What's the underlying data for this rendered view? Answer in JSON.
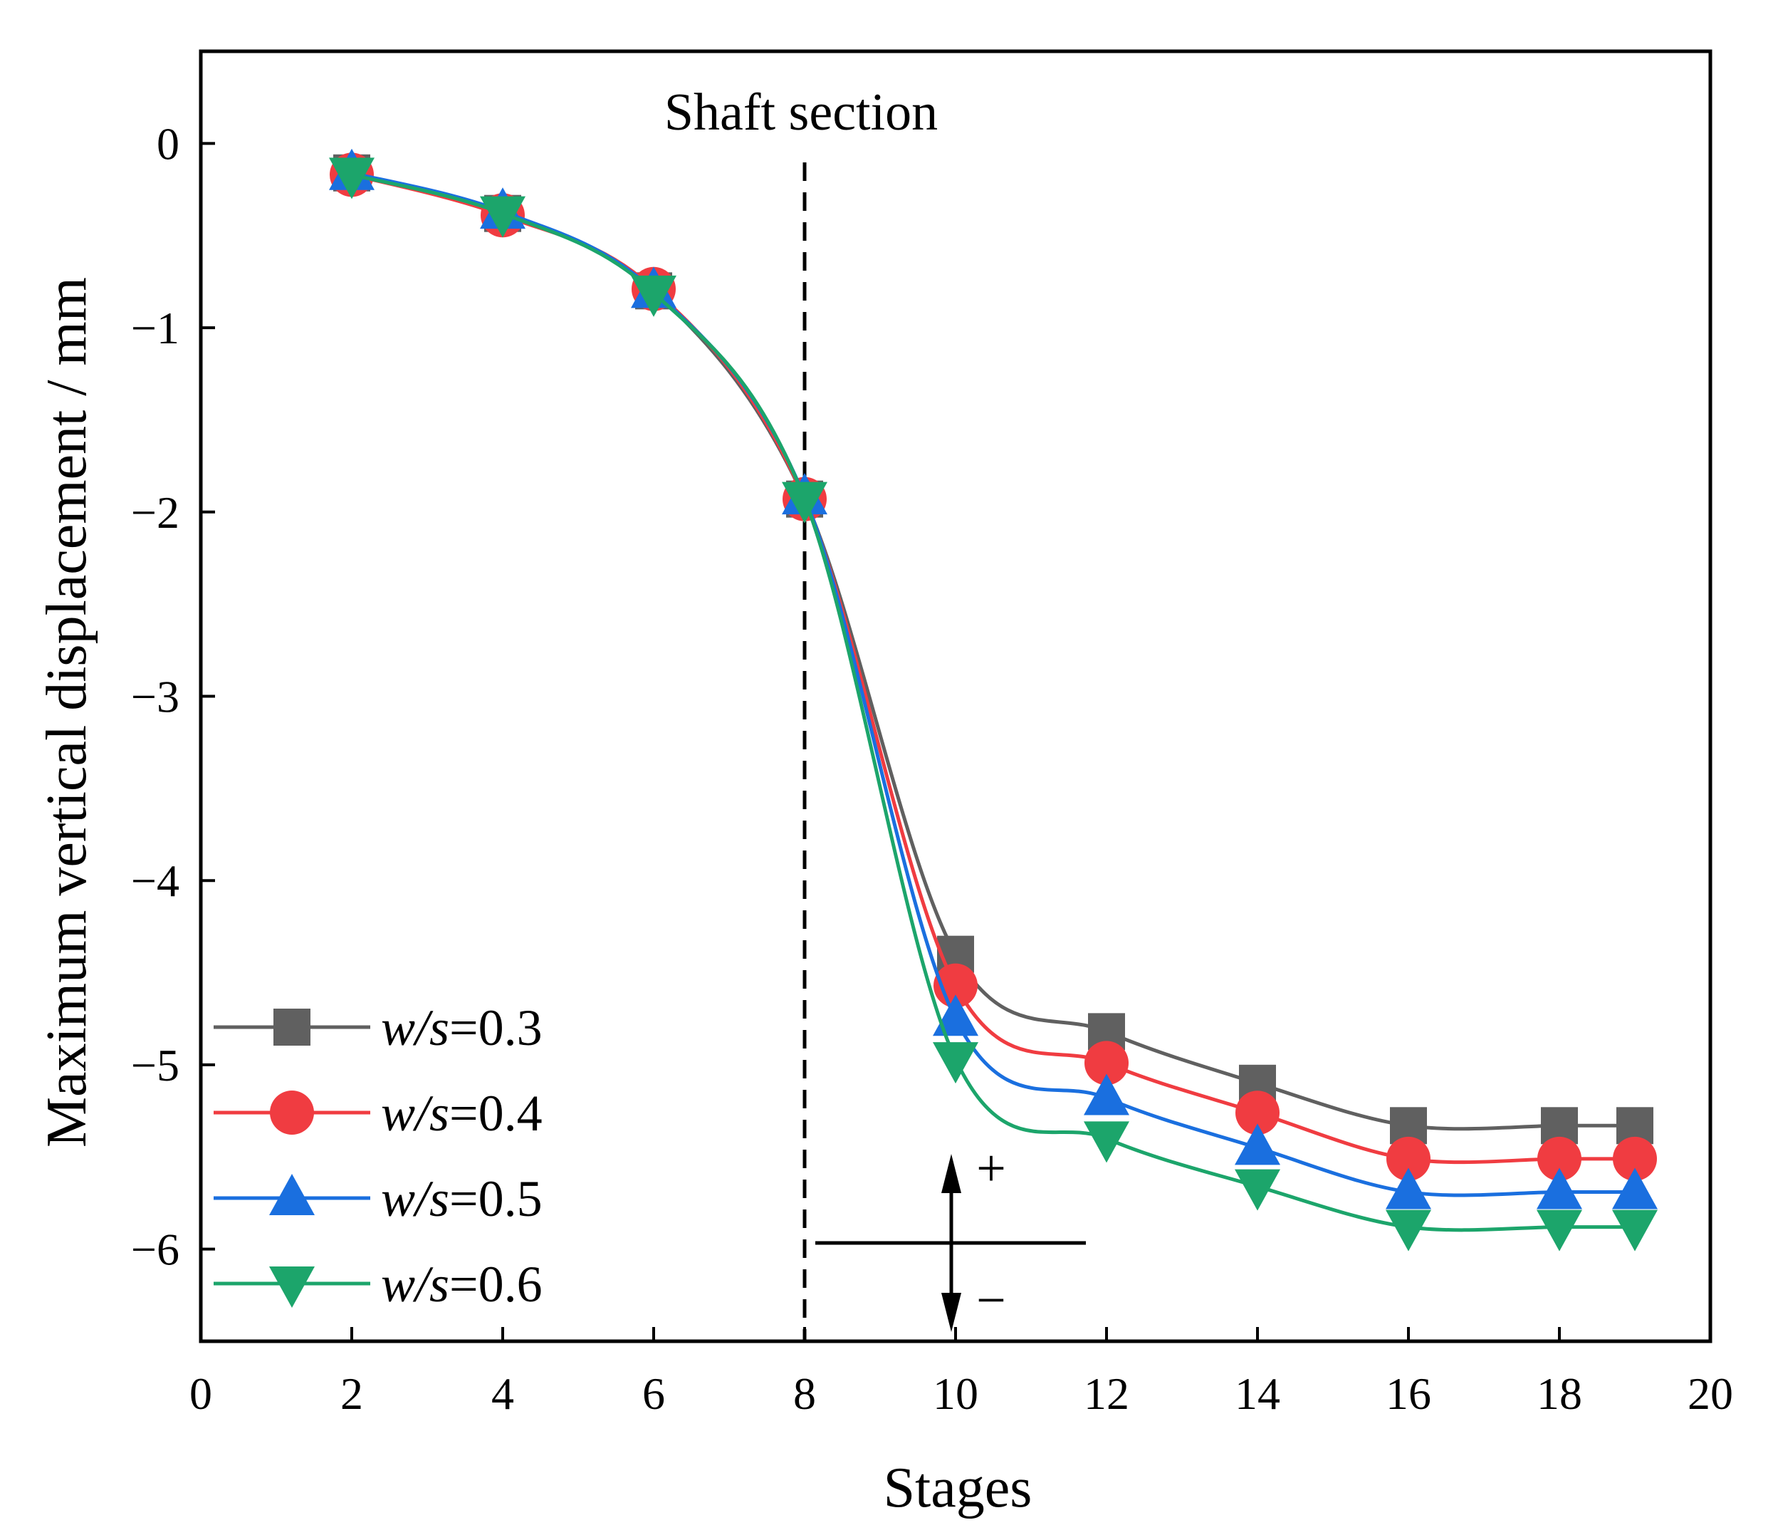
{
  "chart_data": {
    "type": "line",
    "title": "",
    "xlabel": "Stages",
    "ylabel": "Maximum vertical displacement / mm",
    "xlim": [
      0,
      20
    ],
    "ylim": [
      -6.5,
      0.5
    ],
    "xticks": [
      0,
      2,
      4,
      6,
      8,
      10,
      12,
      14,
      16,
      18,
      20
    ],
    "yticks": [
      0,
      -1,
      -2,
      -3,
      -4,
      -5,
      -6
    ],
    "ytick_labels": [
      "0",
      "−1",
      "−2",
      "−3",
      "−4",
      "−5",
      "−6"
    ],
    "grid": false,
    "legend_position": "bottom-left",
    "x": [
      2,
      4,
      6,
      8,
      10,
      12,
      14,
      16,
      18,
      19
    ],
    "series": [
      {
        "name": "w/s=0.3",
        "var": "w/s",
        "eq": "=0.3",
        "color": "#606060",
        "marker": "square",
        "values": [
          -0.16,
          -0.38,
          -0.8,
          -1.93,
          -4.4,
          -4.82,
          -5.1,
          -5.33,
          -5.33,
          -5.33
        ]
      },
      {
        "name": "w/s=0.4",
        "var": "w/s",
        "eq": "=0.4",
        "color": "#f03c41",
        "marker": "circle",
        "values": [
          -0.17,
          -0.39,
          -0.79,
          -1.93,
          -4.57,
          -4.99,
          -5.26,
          -5.51,
          -5.51,
          -5.51
        ]
      },
      {
        "name": "w/s=0.5",
        "var": "w/s",
        "eq": "=0.5",
        "color": "#1a6fdf",
        "marker": "triangle-up",
        "values": [
          -0.16,
          -0.37,
          -0.8,
          -1.92,
          -4.75,
          -5.18,
          -5.45,
          -5.69,
          -5.69,
          -5.69
        ]
      },
      {
        "name": "w/s=0.6",
        "var": "w/s",
        "eq": "=0.6",
        "color": "#1ca56b",
        "marker": "triangle-down",
        "values": [
          -0.17,
          -0.38,
          -0.81,
          -1.93,
          -4.97,
          -5.4,
          -5.66,
          -5.88,
          -5.88,
          -5.88
        ]
      }
    ],
    "annotations": {
      "shaft_section_label": "Shaft section",
      "shaft_section_x": 8,
      "sign_plus": "+",
      "sign_minus": "−"
    }
  }
}
